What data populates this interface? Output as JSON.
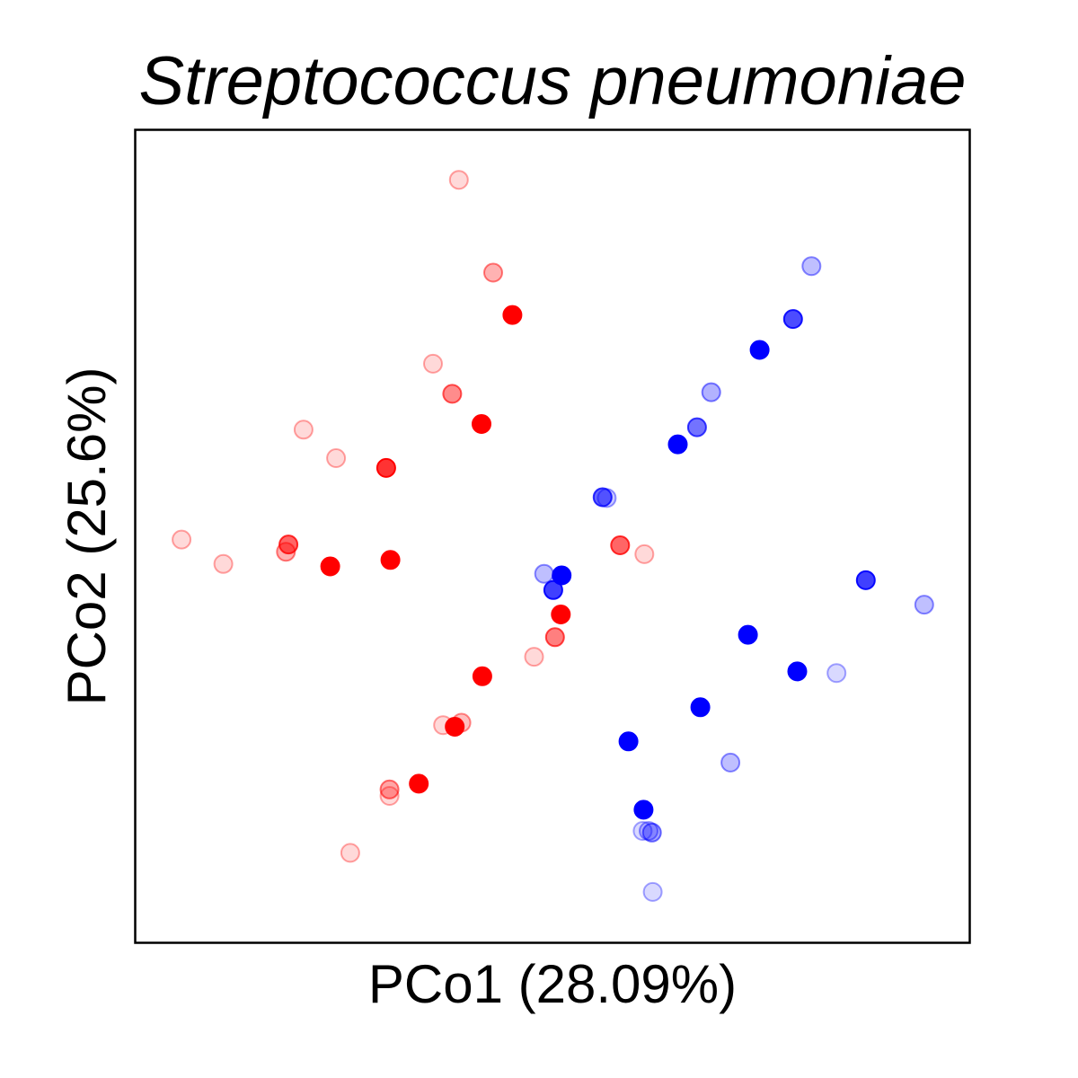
{
  "chart_data": {
    "type": "scatter",
    "title": "Streptococcus pneumoniae",
    "xlabel": "PCo1 (28.09%)",
    "ylabel": "PCo2 (25.6%)",
    "xlim": [
      0,
      100
    ],
    "ylim": [
      0,
      100
    ],
    "show_ticks": false,
    "grid": false,
    "series": [
      {
        "color": "#ff0000",
        "points": [
          {
            "x": 38.8,
            "y": 93.8,
            "opacity": 0.15
          },
          {
            "x": 42.9,
            "y": 82.4,
            "opacity": 0.3
          },
          {
            "x": 45.2,
            "y": 77.2,
            "opacity": 1.0
          },
          {
            "x": 35.7,
            "y": 71.2,
            "opacity": 0.15
          },
          {
            "x": 38.0,
            "y": 67.5,
            "opacity": 0.45
          },
          {
            "x": 41.5,
            "y": 63.8,
            "opacity": 1.0
          },
          {
            "x": 20.2,
            "y": 63.1,
            "opacity": 0.15
          },
          {
            "x": 24.1,
            "y": 59.6,
            "opacity": 0.15
          },
          {
            "x": 30.1,
            "y": 58.4,
            "opacity": 0.8
          },
          {
            "x": 5.6,
            "y": 49.6,
            "opacity": 0.15
          },
          {
            "x": 10.6,
            "y": 46.6,
            "opacity": 0.15
          },
          {
            "x": 18.1,
            "y": 48.1,
            "opacity": 0.3
          },
          {
            "x": 18.4,
            "y": 49.0,
            "opacity": 0.6
          },
          {
            "x": 23.4,
            "y": 46.3,
            "opacity": 1.0
          },
          {
            "x": 30.6,
            "y": 47.1,
            "opacity": 1.0
          },
          {
            "x": 58.1,
            "y": 48.9,
            "opacity": 0.6
          },
          {
            "x": 61.0,
            "y": 47.8,
            "opacity": 0.15
          },
          {
            "x": 51.0,
            "y": 40.4,
            "opacity": 1.0
          },
          {
            "x": 50.3,
            "y": 37.6,
            "opacity": 0.5
          },
          {
            "x": 47.8,
            "y": 35.2,
            "opacity": 0.15
          },
          {
            "x": 41.6,
            "y": 32.8,
            "opacity": 1.0
          },
          {
            "x": 36.9,
            "y": 26.8,
            "opacity": 0.15
          },
          {
            "x": 39.1,
            "y": 27.1,
            "opacity": 0.25
          },
          {
            "x": 38.3,
            "y": 26.6,
            "opacity": 1.0
          },
          {
            "x": 30.5,
            "y": 18.1,
            "opacity": 0.15
          },
          {
            "x": 30.5,
            "y": 18.9,
            "opacity": 0.35
          },
          {
            "x": 34.0,
            "y": 19.6,
            "opacity": 1.0
          },
          {
            "x": 25.8,
            "y": 11.1,
            "opacity": 0.15
          }
        ]
      },
      {
        "color": "#0000ff",
        "points": [
          {
            "x": 81.0,
            "y": 83.2,
            "opacity": 0.25
          },
          {
            "x": 78.8,
            "y": 76.7,
            "opacity": 0.7
          },
          {
            "x": 74.8,
            "y": 72.9,
            "opacity": 1.0
          },
          {
            "x": 69.0,
            "y": 67.7,
            "opacity": 0.3
          },
          {
            "x": 67.3,
            "y": 63.4,
            "opacity": 0.55
          },
          {
            "x": 65.0,
            "y": 61.3,
            "opacity": 1.0
          },
          {
            "x": 56.5,
            "y": 54.7,
            "opacity": 0.2
          },
          {
            "x": 56.0,
            "y": 54.8,
            "opacity": 0.6
          },
          {
            "x": 49.0,
            "y": 45.4,
            "opacity": 0.25
          },
          {
            "x": 51.1,
            "y": 45.2,
            "opacity": 1.0
          },
          {
            "x": 50.1,
            "y": 43.4,
            "opacity": 0.75
          },
          {
            "x": 87.5,
            "y": 44.6,
            "opacity": 0.75
          },
          {
            "x": 94.5,
            "y": 41.6,
            "opacity": 0.25
          },
          {
            "x": 73.4,
            "y": 37.9,
            "opacity": 1.0
          },
          {
            "x": 79.3,
            "y": 33.4,
            "opacity": 1.0
          },
          {
            "x": 84.0,
            "y": 33.2,
            "opacity": 0.15
          },
          {
            "x": 67.7,
            "y": 29.0,
            "opacity": 1.0
          },
          {
            "x": 59.1,
            "y": 24.8,
            "opacity": 1.0
          },
          {
            "x": 71.3,
            "y": 22.2,
            "opacity": 0.25
          },
          {
            "x": 60.9,
            "y": 16.4,
            "opacity": 1.0
          },
          {
            "x": 60.8,
            "y": 13.8,
            "opacity": 0.15
          },
          {
            "x": 61.5,
            "y": 13.8,
            "opacity": 0.2
          },
          {
            "x": 61.9,
            "y": 13.6,
            "opacity": 0.35
          },
          {
            "x": 62.0,
            "y": 6.3,
            "opacity": 0.15
          }
        ]
      }
    ]
  }
}
